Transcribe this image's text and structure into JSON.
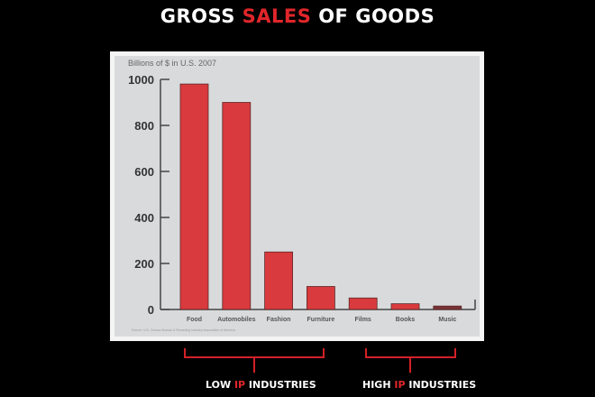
{
  "slide": {
    "title_part1": "GROSS ",
    "title_highlight": "SALES",
    "title_part2": " OF GOODS",
    "accent_color": "#e0262b",
    "groups": [
      {
        "prefix": "LOW ",
        "highlight": "IP",
        "suffix": " INDUSTRIES",
        "categories": [
          "Food",
          "Automobiles",
          "Fashion",
          "Furniture"
        ]
      },
      {
        "prefix": "HIGH ",
        "highlight": "IP",
        "suffix": " INDUSTRIES",
        "categories": [
          "Films",
          "Books",
          "Music"
        ]
      }
    ]
  },
  "chart_data": {
    "type": "bar",
    "ylabel": "Billions of $ in U.S. 2007",
    "categories": [
      "Food",
      "Automobiles",
      "Fashion",
      "Furniture",
      "Films",
      "Books",
      "Music"
    ],
    "values": [
      980,
      900,
      250,
      100,
      50,
      25,
      15
    ],
    "ylim": [
      0,
      1000
    ],
    "yticks": [
      0,
      200,
      400,
      600,
      800,
      1000
    ],
    "grid": false,
    "source": "Source: U.S. Census Bureau & Recording Industry Association of America",
    "bar_color": "#d93a3d",
    "highlight_bar_color": "#7a3235"
  }
}
